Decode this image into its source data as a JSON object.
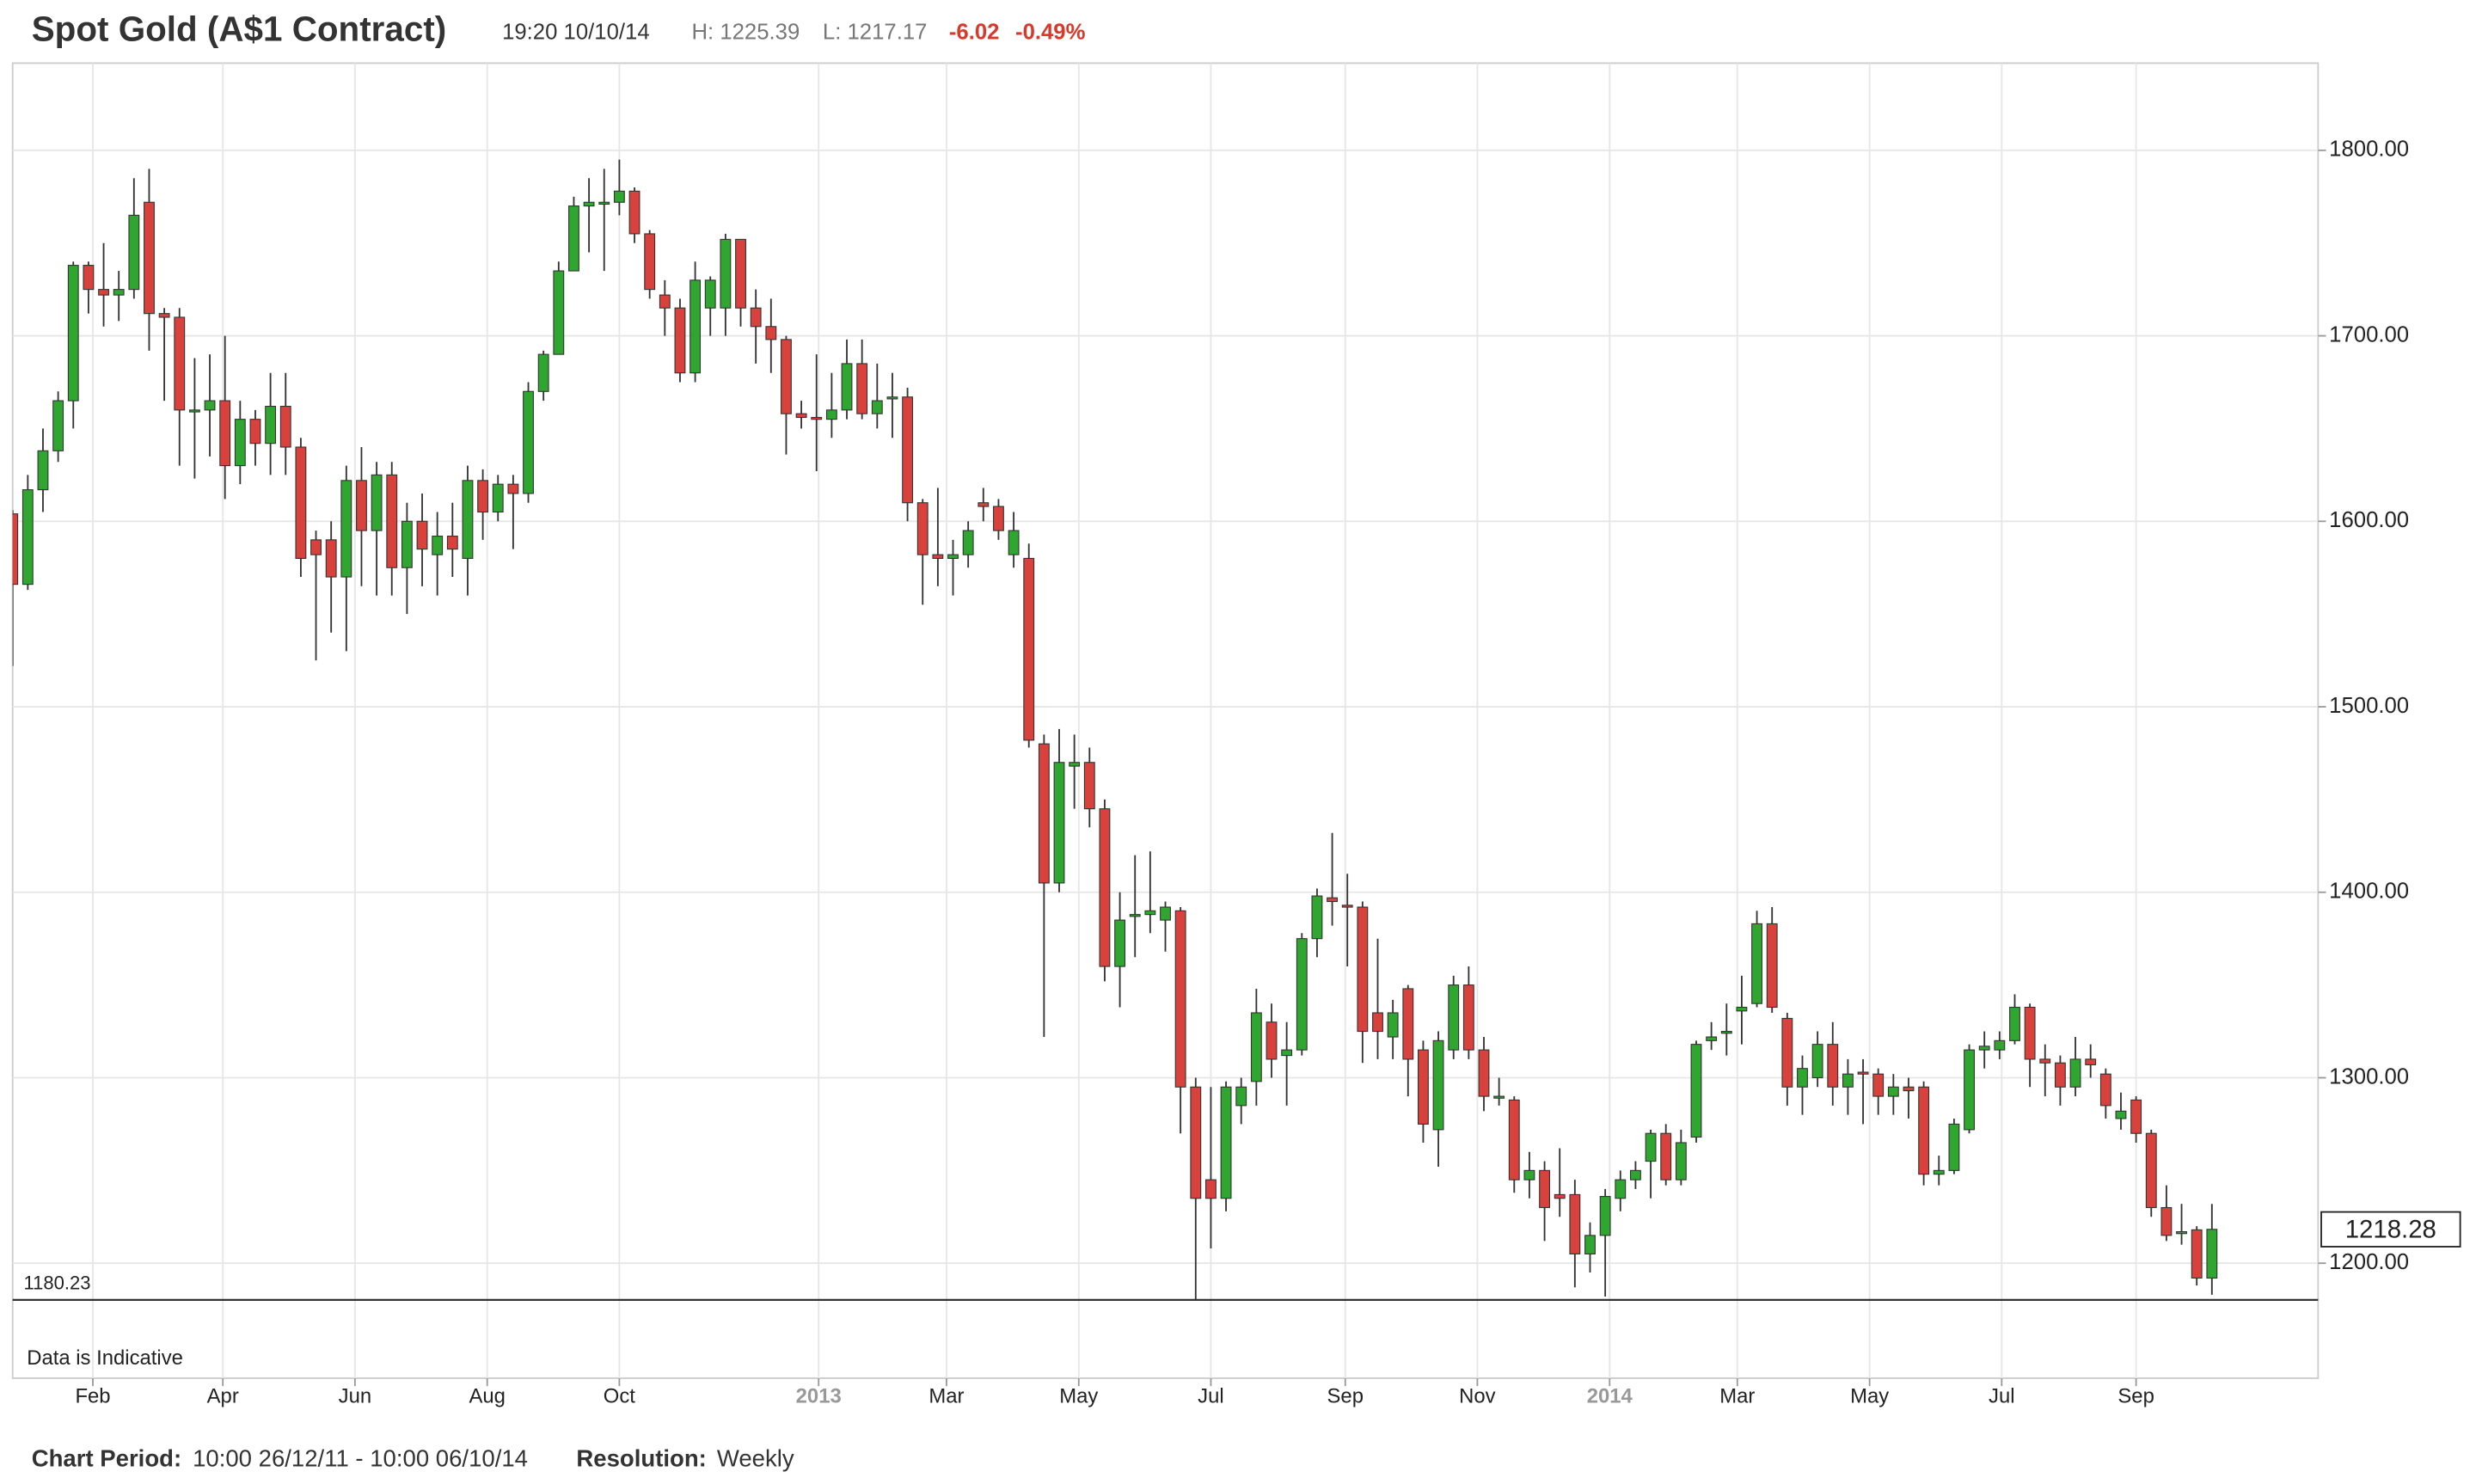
{
  "header": {
    "time": "19:20 10/10/14",
    "high": "H: 1225.39",
    "low": "L: 1217.17",
    "change": "-6.02",
    "change_pct": "-0.49%"
  },
  "chart_data": {
    "type": "candlestick",
    "title": "Spot Gold (A$1 Contract)",
    "up_color": "#2fa62f",
    "down_color": "#d9413c",
    "grid": true,
    "open": [
      1604,
      1566,
      1617,
      1638,
      1665,
      1738,
      1725,
      1722,
      1725,
      1772,
      1712,
      1710,
      1660,
      1660,
      1665,
      1630,
      1655,
      1642,
      1662,
      1640,
      1590,
      1590,
      1570,
      1622,
      1595,
      1625,
      1575,
      1600,
      1582,
      1592,
      1580,
      1622,
      1605,
      1620,
      1615,
      1670,
      1690,
      1735,
      1770,
      1772,
      1772,
      1778,
      1755,
      1722,
      1715,
      1680,
      1715,
      1715,
      1752,
      1715,
      1705,
      1698,
      1658,
      1656,
      1655,
      1660,
      1685,
      1658,
      1666,
      1667,
      1610,
      1582,
      1580,
      1582,
      1610,
      1608,
      1582,
      1580,
      1480,
      1405,
      1468,
      1470,
      1445,
      1360,
      1388,
      1388,
      1385,
      1390,
      1295,
      1245,
      1235,
      1285,
      1298,
      1330,
      1312,
      1315,
      1375,
      1397,
      1393,
      1392,
      1335,
      1322,
      1348,
      1315,
      1272,
      1315,
      1350,
      1315,
      1290,
      1288,
      1245,
      1250,
      1237,
      1237,
      1205,
      1215,
      1235,
      1245,
      1255,
      1270,
      1245,
      1268,
      1320,
      1324,
      1336,
      1340,
      1383,
      1332,
      1295,
      1300,
      1318,
      1295,
      1303,
      1302,
      1290,
      1295,
      1295,
      1248,
      1250,
      1272,
      1315,
      1315,
      1320,
      1338,
      1310,
      1308,
      1295,
      1310,
      1302,
      1278,
      1288,
      1270,
      1230,
      1216,
      1218,
      1192
    ],
    "high": [
      1606,
      1625,
      1650,
      1670,
      1740,
      1740,
      1750,
      1735,
      1785,
      1790,
      1715,
      1715,
      1688,
      1690,
      1700,
      1665,
      1660,
      1680,
      1680,
      1645,
      1595,
      1600,
      1630,
      1640,
      1632,
      1632,
      1610,
      1615,
      1605,
      1610,
      1630,
      1628,
      1625,
      1625,
      1675,
      1692,
      1740,
      1775,
      1785,
      1790,
      1795,
      1780,
      1757,
      1730,
      1720,
      1740,
      1732,
      1755,
      1752,
      1725,
      1720,
      1700,
      1665,
      1690,
      1680,
      1698,
      1698,
      1685,
      1680,
      1672,
      1612,
      1618,
      1590,
      1600,
      1618,
      1612,
      1605,
      1588,
      1485,
      1488,
      1485,
      1478,
      1450,
      1400,
      1420,
      1422,
      1395,
      1392,
      1300,
      1295,
      1298,
      1300,
      1348,
      1340,
      1330,
      1378,
      1402,
      1432,
      1410,
      1395,
      1375,
      1342,
      1350,
      1320,
      1325,
      1355,
      1360,
      1322,
      1300,
      1290,
      1260,
      1255,
      1262,
      1245,
      1222,
      1240,
      1250,
      1255,
      1272,
      1275,
      1272,
      1320,
      1330,
      1340,
      1355,
      1390,
      1392,
      1335,
      1312,
      1325,
      1330,
      1310,
      1310,
      1305,
      1302,
      1300,
      1298,
      1258,
      1278,
      1318,
      1325,
      1325,
      1345,
      1340,
      1318,
      1312,
      1322,
      1318,
      1305,
      1292,
      1290,
      1272,
      1242,
      1232,
      1220,
      1232
    ],
    "low": [
      1522,
      1563,
      1605,
      1632,
      1650,
      1712,
      1705,
      1708,
      1720,
      1692,
      1665,
      1630,
      1623,
      1635,
      1612,
      1620,
      1630,
      1625,
      1625,
      1570,
      1525,
      1540,
      1530,
      1565,
      1560,
      1560,
      1550,
      1565,
      1560,
      1570,
      1560,
      1590,
      1600,
      1585,
      1610,
      1665,
      1690,
      1735,
      1745,
      1735,
      1765,
      1750,
      1720,
      1700,
      1675,
      1675,
      1700,
      1700,
      1705,
      1685,
      1680,
      1636,
      1650,
      1627,
      1645,
      1655,
      1655,
      1650,
      1645,
      1600,
      1555,
      1565,
      1560,
      1575,
      1600,
      1590,
      1575,
      1478,
      1322,
      1400,
      1445,
      1435,
      1352,
      1338,
      1365,
      1378,
      1368,
      1270,
      1180,
      1208,
      1228,
      1275,
      1285,
      1300,
      1285,
      1312,
      1365,
      1382,
      1360,
      1308,
      1310,
      1310,
      1290,
      1265,
      1252,
      1310,
      1310,
      1282,
      1285,
      1238,
      1235,
      1212,
      1225,
      1187,
      1195,
      1182,
      1228,
      1240,
      1235,
      1242,
      1242,
      1265,
      1315,
      1312,
      1318,
      1338,
      1335,
      1285,
      1280,
      1295,
      1285,
      1280,
      1275,
      1280,
      1280,
      1278,
      1242,
      1242,
      1248,
      1270,
      1305,
      1310,
      1318,
      1295,
      1290,
      1285,
      1290,
      1300,
      1278,
      1272,
      1265,
      1225,
      1212,
      1210,
      1188,
      1183
    ],
    "close": [
      1566,
      1617,
      1638,
      1665,
      1738,
      1725,
      1722,
      1725,
      1765,
      1712,
      1710,
      1660,
      1660,
      1665,
      1630,
      1655,
      1642,
      1662,
      1640,
      1580,
      1582,
      1570,
      1622,
      1595,
      1625,
      1575,
      1600,
      1585,
      1592,
      1585,
      1622,
      1605,
      1620,
      1615,
      1670,
      1690,
      1735,
      1770,
      1772,
      1772,
      1778,
      1755,
      1725,
      1715,
      1680,
      1730,
      1730,
      1752,
      1715,
      1705,
      1698,
      1658,
      1656,
      1655,
      1660,
      1685,
      1658,
      1665,
      1667,
      1610,
      1582,
      1580,
      1582,
      1595,
      1608,
      1595,
      1595,
      1482,
      1405,
      1470,
      1470,
      1445,
      1360,
      1385,
      1388,
      1390,
      1392,
      1295,
      1235,
      1235,
      1295,
      1295,
      1335,
      1310,
      1315,
      1375,
      1398,
      1395,
      1392,
      1325,
      1325,
      1335,
      1310,
      1275,
      1320,
      1350,
      1315,
      1290,
      1290,
      1245,
      1250,
      1230,
      1235,
      1205,
      1215,
      1236,
      1245,
      1250,
      1270,
      1245,
      1265,
      1318,
      1322,
      1325,
      1338,
      1383,
      1338,
      1295,
      1305,
      1318,
      1295,
      1302,
      1302,
      1290,
      1295,
      1293,
      1248,
      1250,
      1275,
      1315,
      1317,
      1320,
      1338,
      1310,
      1308,
      1295,
      1310,
      1307,
      1285,
      1282,
      1270,
      1230,
      1215,
      1217,
      1192,
      1218.28
    ],
    "last_price_label": "1218.28",
    "low_line": {
      "value": 1180.23,
      "label": "1180.23"
    },
    "note": "Data is Indicative",
    "xlim": [
      0,
      152
    ],
    "xticks": [
      {
        "value": 5.29,
        "label": "Feb"
      },
      {
        "value": 13.86,
        "label": "Apr"
      },
      {
        "value": 22.57,
        "label": "Jun"
      },
      {
        "value": 31.29,
        "label": "Aug"
      },
      {
        "value": 40,
        "label": "Oct"
      },
      {
        "value": 53.14,
        "label": "2013"
      },
      {
        "value": 61.57,
        "label": "Mar"
      },
      {
        "value": 70.29,
        "label": "May"
      },
      {
        "value": 79,
        "label": "Jul"
      },
      {
        "value": 87.86,
        "label": "Sep"
      },
      {
        "value": 96.57,
        "label": "Nov"
      },
      {
        "value": 105.29,
        "label": "2014"
      },
      {
        "value": 113.71,
        "label": "Mar"
      },
      {
        "value": 122.43,
        "label": "May"
      },
      {
        "value": 131.14,
        "label": "Jul"
      },
      {
        "value": 140,
        "label": "Sep"
      }
    ],
    "ylim": [
      1138,
      1847
    ],
    "yticks": [
      {
        "value": 1200,
        "label": "1200.00"
      },
      {
        "value": 1300,
        "label": "1300.00"
      },
      {
        "value": 1400,
        "label": "1400.00"
      },
      {
        "value": 1500,
        "label": "1500.00"
      },
      {
        "value": 1600,
        "label": "1600.00"
      },
      {
        "value": 1700,
        "label": "1700.00"
      },
      {
        "value": 1800,
        "label": "1800.00"
      }
    ]
  },
  "footer": {
    "period_label": "Chart Period:",
    "period": "10:00 26/12/11 - 10:00 06/10/14",
    "resolution_label": "Resolution:",
    "resolution": "Weekly"
  }
}
